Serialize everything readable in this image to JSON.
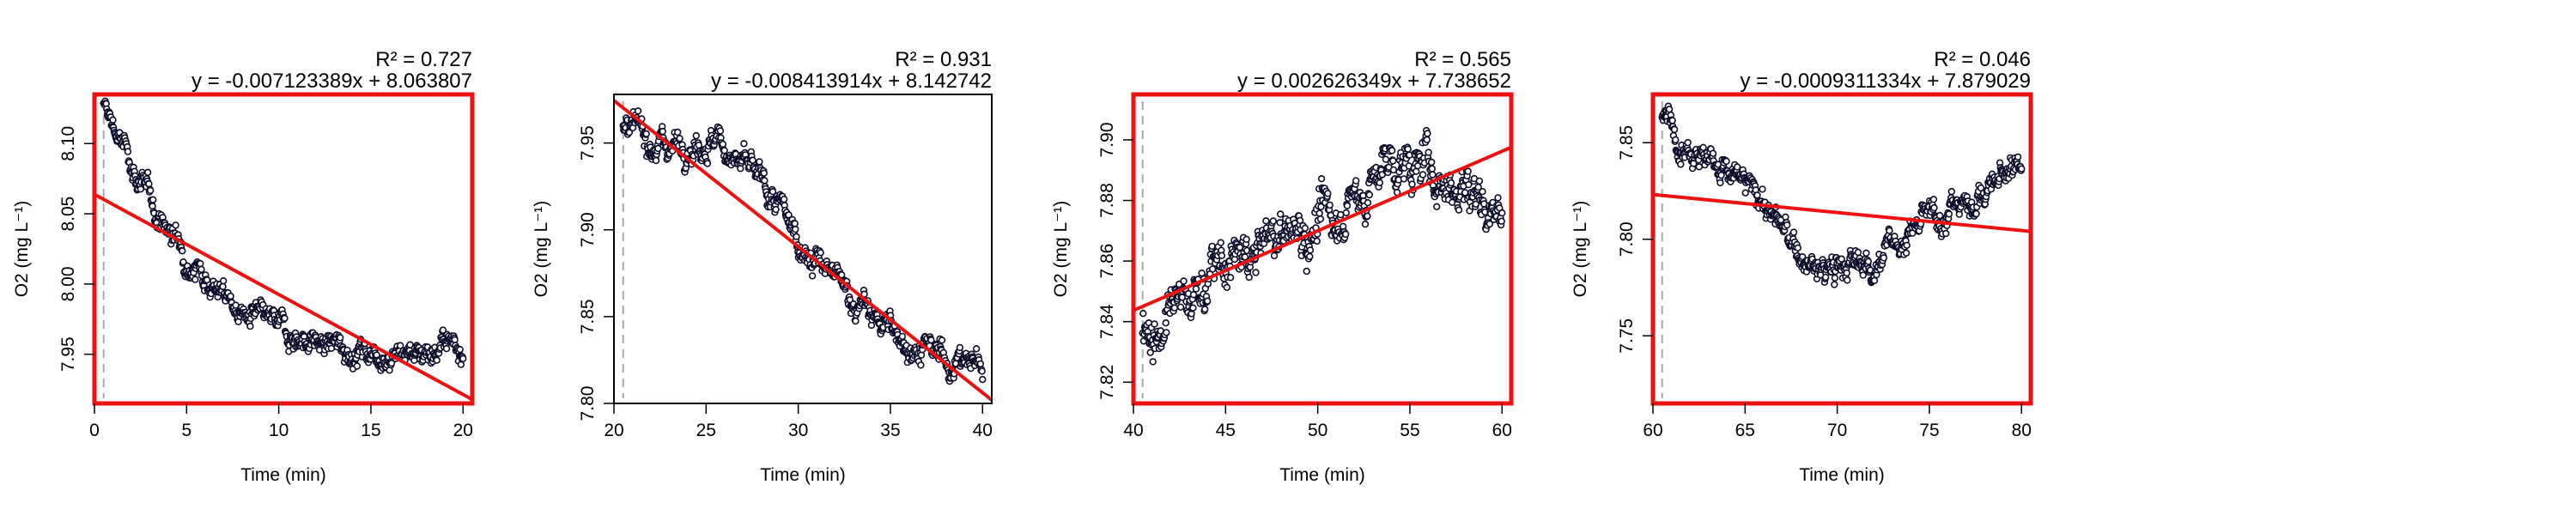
{
  "chart_data": [
    {
      "type": "scatter",
      "xlabel": "Time (min)",
      "ylabel": "O2 (mg L⁻¹)",
      "xlim": [
        0,
        20.5
      ],
      "ylim": [
        7.915,
        8.135
      ],
      "xticks": [
        0,
        5,
        10,
        15,
        20
      ],
      "yticks": [
        7.95,
        8.0,
        8.05,
        8.1
      ],
      "r2_label": "R² = 0.727",
      "equation": "y = -0.007123389x + 8.063807",
      "fit": {
        "slope": -0.007123389,
        "intercept": 8.063807
      },
      "border_color": "#ee1111",
      "start_marker_x": 0.5,
      "profile": [
        [
          0.5,
          8.125
        ],
        [
          1,
          8.113
        ],
        [
          2,
          8.085
        ],
        [
          3,
          8.06
        ],
        [
          4,
          8.038
        ],
        [
          5,
          8.022
        ],
        [
          6,
          8.008
        ],
        [
          7,
          7.993
        ],
        [
          8,
          7.978
        ],
        [
          10,
          7.968
        ],
        [
          12,
          7.958
        ],
        [
          14,
          7.953
        ],
        [
          17,
          7.952
        ],
        [
          20,
          7.958
        ]
      ],
      "noise": 0.012
    },
    {
      "type": "scatter",
      "xlabel": "Time (min)",
      "ylabel": "O2 (mg L⁻¹)",
      "xlim": [
        20,
        40.5
      ],
      "ylim": [
        7.8,
        7.978
      ],
      "xticks": [
        20,
        25,
        30,
        35,
        40
      ],
      "yticks": [
        7.8,
        7.85,
        7.9,
        7.95
      ],
      "r2_label": "R² = 0.931",
      "equation": "y = -0.008413914x + 8.142742",
      "fit": {
        "slope": -0.008413914,
        "intercept": 8.142742
      },
      "border_color": "#000000",
      "start_marker_x": 20.5,
      "profile": [
        [
          20.5,
          7.955
        ],
        [
          23,
          7.95
        ],
        [
          25,
          7.953
        ],
        [
          26,
          7.948
        ],
        [
          28,
          7.925
        ],
        [
          30,
          7.895
        ],
        [
          32,
          7.87
        ],
        [
          34,
          7.85
        ],
        [
          36,
          7.835
        ],
        [
          38,
          7.825
        ],
        [
          40,
          7.823
        ]
      ],
      "noise": 0.011
    },
    {
      "type": "scatter",
      "xlabel": "Time (min)",
      "ylabel": "O2 (mg L⁻¹)",
      "xlim": [
        40,
        60.5
      ],
      "ylim": [
        7.813,
        7.915
      ],
      "xticks": [
        40,
        45,
        50,
        55,
        60
      ],
      "yticks": [
        7.82,
        7.84,
        7.86,
        7.88,
        7.9
      ],
      "r2_label": "R² = 0.565",
      "equation": "y = 0.002626349x + 7.738652",
      "fit": {
        "slope": 0.002626349,
        "intercept": 7.738652
      },
      "border_color": "#ee1111",
      "start_marker_x": 40.5,
      "profile": [
        [
          40.5,
          7.835
        ],
        [
          42,
          7.84
        ],
        [
          44,
          7.855
        ],
        [
          46,
          7.86
        ],
        [
          48,
          7.868
        ],
        [
          50,
          7.872
        ],
        [
          52,
          7.88
        ],
        [
          54,
          7.893
        ],
        [
          56,
          7.89
        ],
        [
          58,
          7.885
        ],
        [
          60,
          7.878
        ]
      ],
      "noise": 0.011
    },
    {
      "type": "scatter",
      "xlabel": "Time (min)",
      "ylabel": "O2 (mg L⁻¹)",
      "xlim": [
        60,
        80.5
      ],
      "ylim": [
        7.715,
        7.875
      ],
      "xticks": [
        60,
        65,
        70,
        75,
        80
      ],
      "yticks": [
        7.75,
        7.8,
        7.85
      ],
      "r2_label": "R² = 0.046",
      "equation": "y = -0.0009311334x + 7.879029",
      "fit": {
        "slope": -0.0009311334,
        "intercept": 7.879029
      },
      "border_color": "#ee1111",
      "start_marker_x": 60.5,
      "profile": [
        [
          60.5,
          7.862
        ],
        [
          62,
          7.852
        ],
        [
          64,
          7.835
        ],
        [
          66,
          7.82
        ],
        [
          67,
          7.805
        ],
        [
          68,
          7.79
        ],
        [
          69,
          7.782
        ],
        [
          70,
          7.785
        ],
        [
          72,
          7.788
        ],
        [
          74,
          7.805
        ],
        [
          76,
          7.815
        ],
        [
          78,
          7.825
        ],
        [
          80,
          7.84
        ]
      ],
      "noise": 0.01
    }
  ]
}
